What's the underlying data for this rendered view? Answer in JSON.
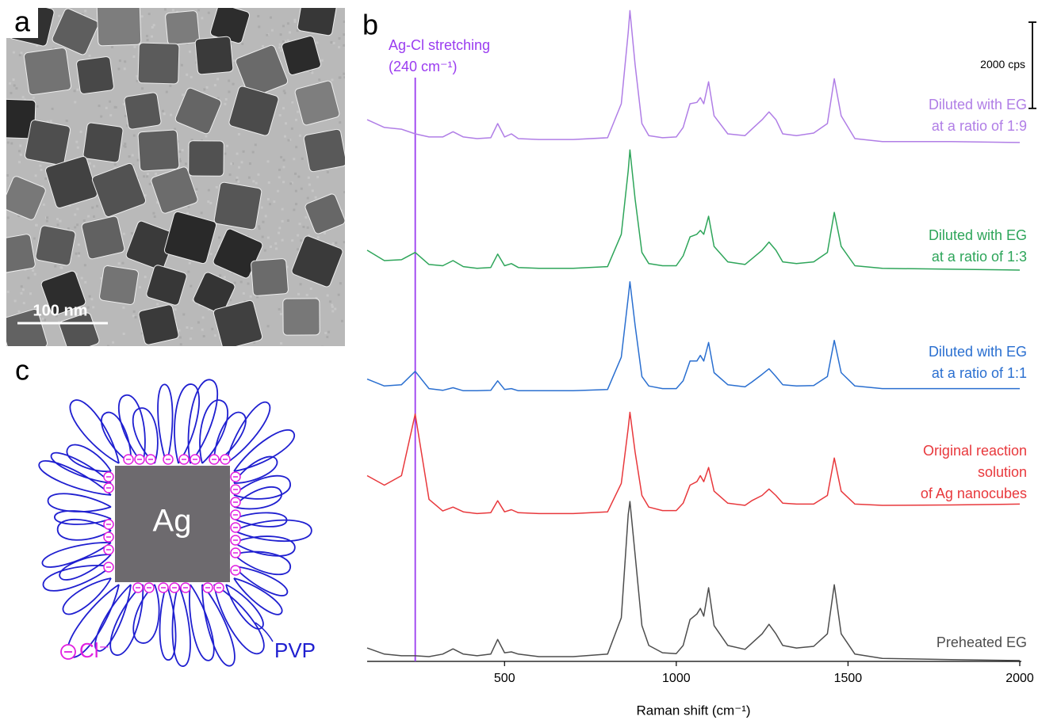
{
  "panel_labels": [
    "a",
    "b",
    "c"
  ],
  "tem": {
    "scale_label": "100 nm"
  },
  "schematic": {
    "core": "Ag",
    "ion": "Cl⁻",
    "polymer": "PVP"
  },
  "chart_data": {
    "type": "line",
    "x_label": "Raman shift (cm⁻¹)",
    "xlim": [
      100,
      2000
    ],
    "xticks": [
      500,
      1000,
      1500,
      2000
    ],
    "ylim": [
      0,
      15200
    ],
    "scale_bar": {
      "value": 2000,
      "label": "2000 cps"
    },
    "annotation": {
      "x": 240,
      "text": [
        "Ag-Cl stretching",
        "(240 cm⁻¹)"
      ],
      "color": "#9a3cf0"
    },
    "x": [
      100,
      150,
      200,
      240,
      280,
      320,
      350,
      380,
      420,
      460,
      480,
      500,
      520,
      540,
      600,
      700,
      800,
      840,
      860,
      865,
      880,
      900,
      920,
      960,
      1000,
      1020,
      1040,
      1060,
      1070,
      1080,
      1094,
      1110,
      1150,
      1200,
      1220,
      1250,
      1270,
      1290,
      1310,
      1350,
      1400,
      1440,
      1460,
      1480,
      1520,
      1600,
      1800,
      2000
    ],
    "series": [
      {
        "name": [
          "Diluted with EG",
          "at a ratio of 1:9"
        ],
        "color": "#b07ee6",
        "values": [
          12570,
          12390,
          12350,
          12240,
          12170,
          12170,
          12290,
          12170,
          12130,
          12150,
          12480,
          12170,
          12240,
          12130,
          12110,
          12110,
          12150,
          12940,
          14590,
          15100,
          13850,
          12480,
          12200,
          12150,
          12170,
          12390,
          12940,
          12970,
          13080,
          12940,
          13450,
          12660,
          12240,
          12200,
          12350,
          12570,
          12750,
          12570,
          12240,
          12200,
          12260,
          12480,
          13520,
          12660,
          12130,
          12060,
          12060,
          12040
        ]
      },
      {
        "name": [
          "Diluted with EG",
          "at a ratio of 1:3"
        ],
        "color": "#2ea55a",
        "values": [
          9540,
          9300,
          9320,
          9490,
          9210,
          9180,
          9300,
          9160,
          9120,
          9140,
          9450,
          9180,
          9230,
          9140,
          9120,
          9120,
          9160,
          9910,
          11380,
          11870,
          10730,
          9490,
          9230,
          9180,
          9180,
          9410,
          9850,
          9910,
          10000,
          9910,
          10330,
          9630,
          9270,
          9210,
          9340,
          9540,
          9730,
          9540,
          9270,
          9230,
          9270,
          9490,
          10420,
          9630,
          9180,
          9120,
          9100,
          9080
        ]
      },
      {
        "name": [
          "Diluted with EG",
          "at a ratio of 1:1"
        ],
        "color": "#2a6fd0",
        "values": [
          6550,
          6390,
          6420,
          6730,
          6330,
          6290,
          6350,
          6280,
          6280,
          6290,
          6510,
          6310,
          6330,
          6280,
          6280,
          6280,
          6310,
          7060,
          8440,
          8810,
          7800,
          6610,
          6390,
          6330,
          6330,
          6510,
          6970,
          6970,
          7100,
          6970,
          7400,
          6700,
          6420,
          6370,
          6480,
          6660,
          6790,
          6610,
          6420,
          6390,
          6400,
          6610,
          7450,
          6700,
          6390,
          6330,
          6330,
          6330
        ]
      },
      {
        "name": [
          "Original reaction",
          "solution",
          "of Ag nanocubes"
        ],
        "color": "#e8383c",
        "values": [
          4310,
          4090,
          4310,
          5740,
          3760,
          3490,
          3580,
          3470,
          3430,
          3450,
          3730,
          3470,
          3520,
          3450,
          3430,
          3430,
          3470,
          4130,
          5410,
          5780,
          4860,
          3850,
          3580,
          3500,
          3500,
          3670,
          4090,
          4170,
          4310,
          4170,
          4500,
          3950,
          3670,
          3620,
          3730,
          3850,
          4000,
          3850,
          3670,
          3650,
          3650,
          3850,
          4720,
          3950,
          3650,
          3620,
          3630,
          3650
        ]
      },
      {
        "name": [
          "Preheated EG"
        ],
        "color": "#4d4d4d",
        "values": [
          310,
          170,
          130,
          130,
          110,
          170,
          290,
          170,
          130,
          170,
          510,
          200,
          220,
          170,
          110,
          110,
          170,
          1010,
          3400,
          3710,
          2480,
          830,
          370,
          200,
          180,
          370,
          970,
          1100,
          1230,
          1050,
          1710,
          830,
          370,
          280,
          420,
          640,
          860,
          640,
          370,
          310,
          350,
          640,
          1780,
          640,
          170,
          70,
          40,
          20
        ]
      }
    ]
  }
}
